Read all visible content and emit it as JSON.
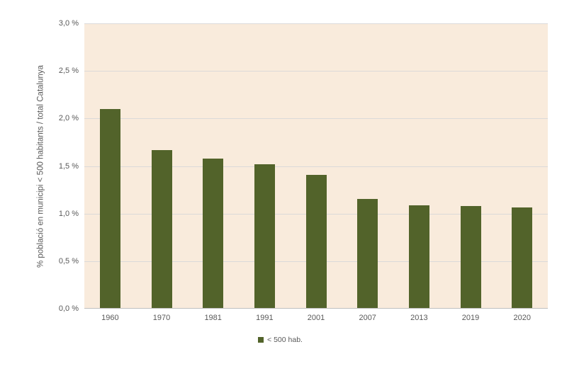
{
  "chart_data": {
    "type": "bar",
    "title": "",
    "xlabel": "",
    "ylabel": "% població en municipi < 500 habitants / total Catalunya",
    "categories": [
      "1960",
      "1970",
      "1981",
      "1991",
      "2001",
      "2007",
      "2013",
      "2019",
      "2020"
    ],
    "values": [
      2.09,
      1.66,
      1.57,
      1.51,
      1.4,
      1.15,
      1.08,
      1.07,
      1.06
    ],
    "series_name": "< 500 hab.",
    "ylim": [
      0,
      3.0
    ],
    "ytick_step": 0.5,
    "yticklabels": [
      "0,0 %",
      "0,5 %",
      "1,0 %",
      "1,5 %",
      "2,0 %",
      "2,5 %",
      "3,0 %"
    ],
    "grid": true,
    "legend_position": "bottom",
    "colors": {
      "bar": "#52632a",
      "plot_background": "#f9ebdc",
      "gridline": "#dbd9d9",
      "axis_line": "#bfbfbf",
      "text": "#595959",
      "page_background": "#ffffff"
    }
  },
  "legend": {
    "label": "< 500 hab."
  }
}
